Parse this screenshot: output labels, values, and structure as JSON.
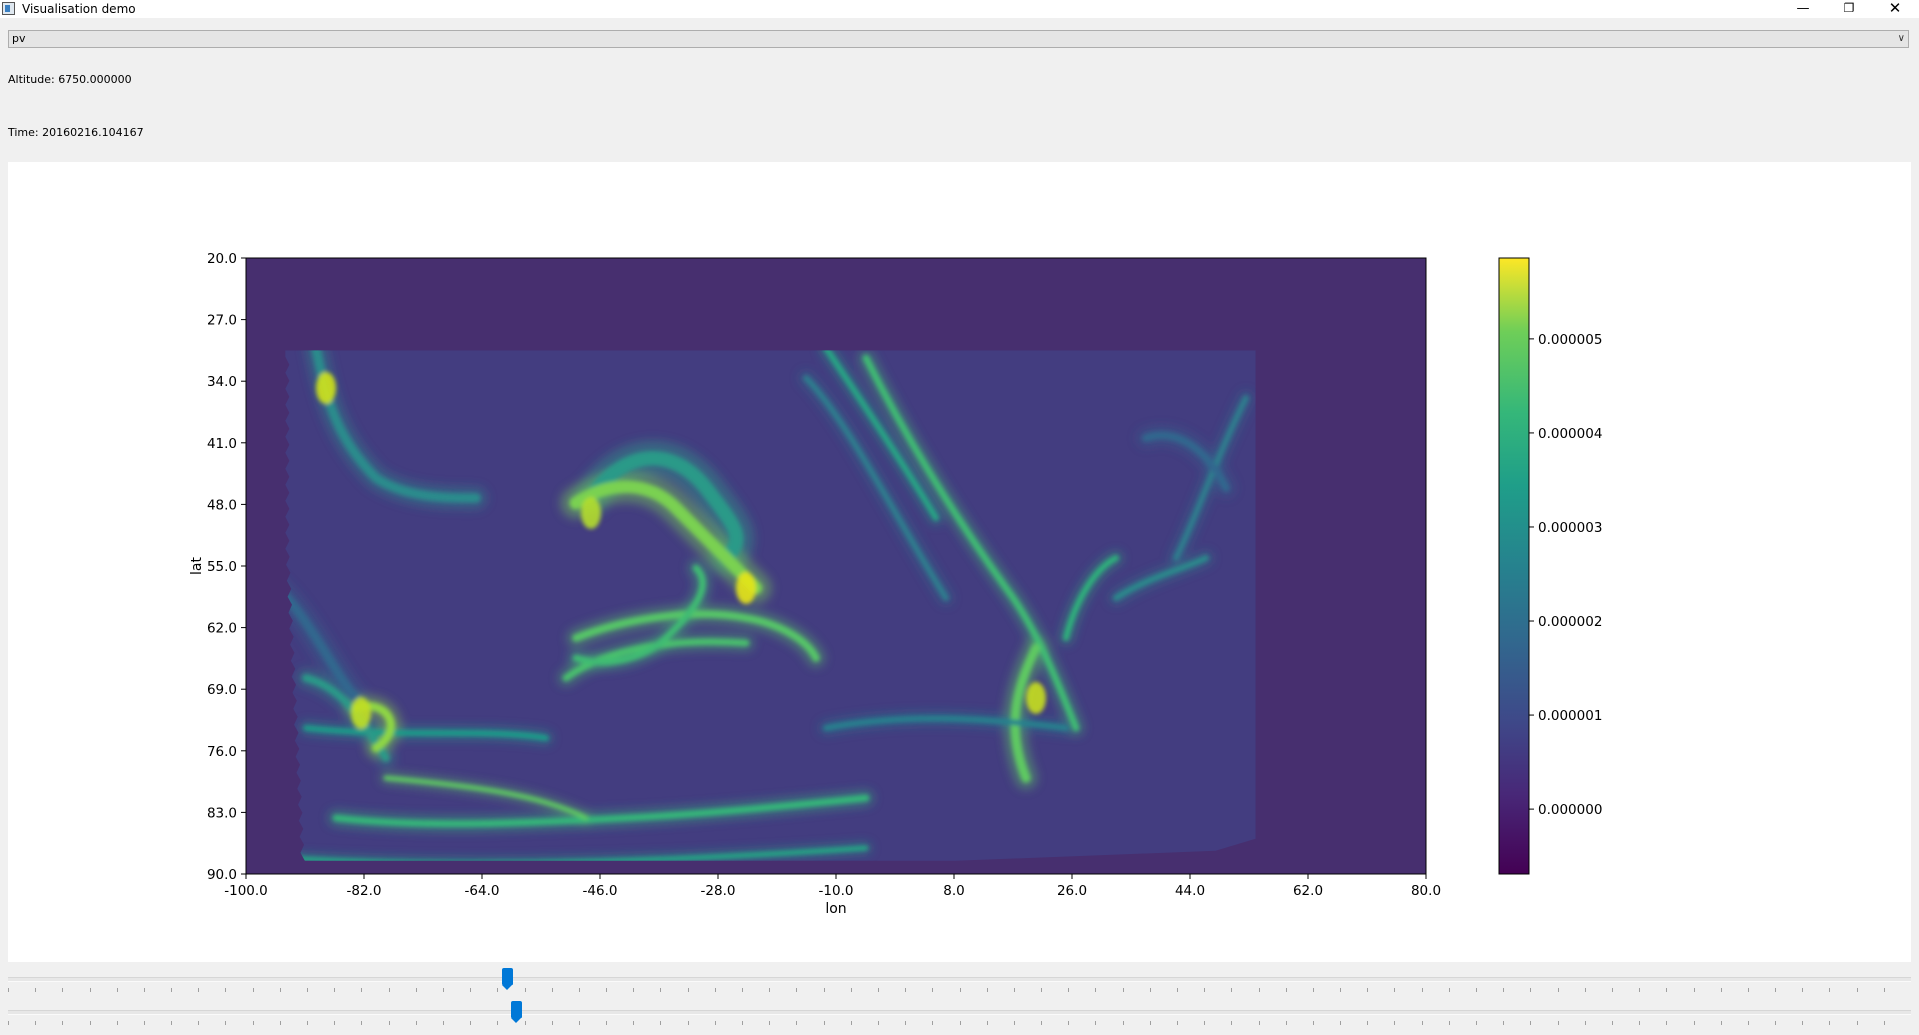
{
  "window": {
    "title": "Visualisation demo"
  },
  "variable_select": {
    "value": "pv"
  },
  "altitude": {
    "text": "Altitude: 6750.000000"
  },
  "time": {
    "text": "Time: 20160216.104167"
  },
  "sliders": [
    {
      "name": "altitude-slider",
      "value_fraction": 0.262
    },
    {
      "name": "time-slider",
      "value_fraction": 0.267
    }
  ],
  "chart_data": {
    "type": "heatmap",
    "xlabel": "lon",
    "ylabel": "lat",
    "xlim": [
      -100.0,
      80.0
    ],
    "ylim": [
      90.0,
      20.0
    ],
    "y_axis_inverted": true,
    "x_ticks": [
      "-100.0",
      "-82.0",
      "-64.0",
      "-46.0",
      "-28.0",
      "-10.0",
      "8.0",
      "26.0",
      "44.0",
      "62.0",
      "80.0"
    ],
    "y_ticks": [
      "20.0",
      "27.0",
      "34.0",
      "41.0",
      "48.0",
      "55.0",
      "62.0",
      "69.0",
      "76.0",
      "83.0",
      "90.0"
    ],
    "data_extent": {
      "lon": [
        -94.0,
        54.0
      ],
      "lat": [
        30.5,
        88.5
      ]
    },
    "background_value": 0.0,
    "colormap": "viridis",
    "colorbar": {
      "ticks": [
        "0.000000",
        "0.000001",
        "0.000002",
        "0.000003",
        "0.000004",
        "0.000005"
      ],
      "tick_values": [
        0.0,
        1e-06,
        2e-06,
        3e-06,
        4e-06,
        5e-06
      ],
      "range": [
        -6.9e-07,
        5.86e-06
      ]
    },
    "grid": false
  }
}
